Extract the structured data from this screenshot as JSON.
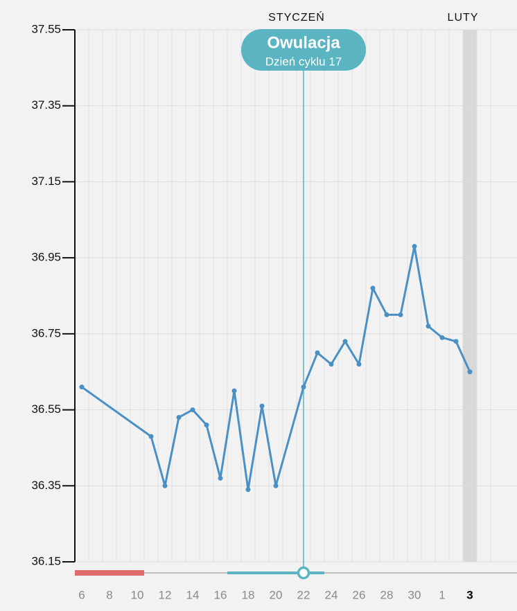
{
  "chart_data": {
    "type": "line",
    "months": [
      "STYCZEŃ",
      "LUTY"
    ],
    "annotation": {
      "title": "Owulacja",
      "subtitle": "Dzień cyklu 17"
    },
    "categories": [
      "6",
      null,
      "8",
      null,
      "10",
      null,
      "12",
      null,
      "14",
      null,
      "16",
      null,
      "18",
      null,
      "20",
      null,
      "22",
      null,
      "24",
      null,
      "26",
      null,
      "28",
      null,
      "30",
      null,
      "1",
      null,
      "3"
    ],
    "series": [
      {
        "color": "#4a90c4",
        "values": [
          36.61,
          null,
          null,
          null,
          null,
          36.48,
          36.35,
          36.53,
          36.55,
          36.51,
          36.37,
          36.6,
          36.34,
          36.56,
          36.35,
          null,
          36.61,
          36.7,
          36.67,
          36.73,
          36.67,
          36.87,
          36.8,
          36.8,
          36.98,
          36.77,
          36.74,
          36.73,
          36.65
        ]
      }
    ],
    "span_gaps": true,
    "ylim": [
      36.15,
      37.55
    ],
    "yticks": [
      36.15,
      36.35,
      36.55,
      36.75,
      36.95,
      37.15,
      37.35,
      37.55
    ],
    "grid": true
  }
}
